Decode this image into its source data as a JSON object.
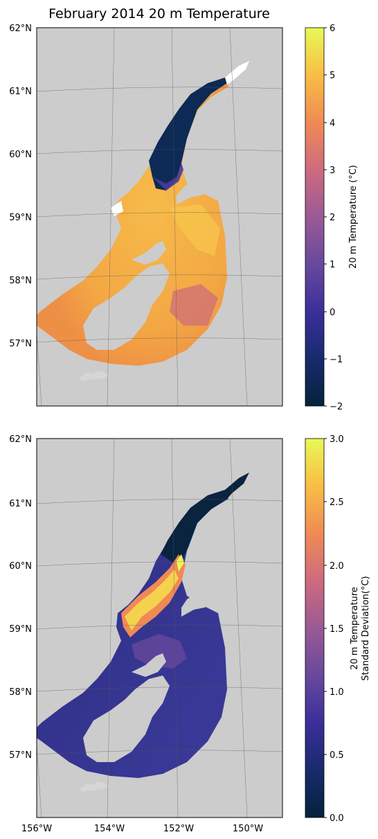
{
  "title": "February 2014 20 m Temperature",
  "chart_data": [
    {
      "type": "heatmap",
      "panel": "top",
      "title": "February 2014 20 m Temperature",
      "lat_ticks": [
        "62°N",
        "61°N",
        "60°N",
        "59°N",
        "58°N",
        "57°N"
      ],
      "lat_values": [
        62,
        61,
        60,
        59,
        58,
        57
      ],
      "lon_ticks": [],
      "colorbar": {
        "label": "20 m Temperature (°C)",
        "ticks": [
          "−2",
          "−1",
          "0",
          "1",
          "2",
          "3",
          "4",
          "5",
          "6"
        ],
        "range": [
          -2,
          6
        ],
        "colormap": "thermal"
      },
      "land_color": "#cccccc",
      "grid": true
    },
    {
      "type": "heatmap",
      "panel": "bottom",
      "lat_ticks": [
        "62°N",
        "61°N",
        "60°N",
        "59°N",
        "58°N",
        "57°N"
      ],
      "lat_values": [
        62,
        61,
        60,
        59,
        58,
        57
      ],
      "lon_ticks": [
        "156°W",
        "154°W",
        "152°W",
        "150°W"
      ],
      "lon_values": [
        -156,
        -154,
        -152,
        -150
      ],
      "colorbar": {
        "label_lines": [
          "20 m Temperature",
          "Standard Deviation(°C)"
        ],
        "ticks": [
          "0.0",
          "0.5",
          "1.0",
          "1.5",
          "2.0",
          "2.5",
          "3.0"
        ],
        "range": [
          0,
          3
        ],
        "colormap": "thermal"
      },
      "land_color": "#cccccc",
      "grid": true
    }
  ],
  "colors": {
    "land": "#cccccc",
    "ocean_mask": "#ffffff"
  }
}
